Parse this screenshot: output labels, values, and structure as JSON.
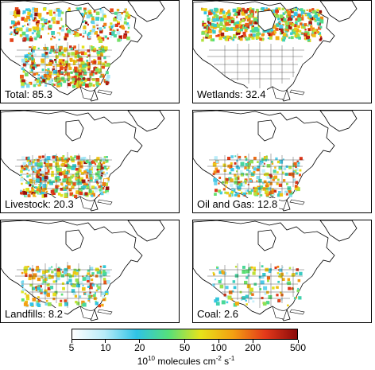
{
  "panels": [
    {
      "id": "total",
      "label": "Total: 85.3",
      "intensity": 1.0
    },
    {
      "id": "wetlands",
      "label": "Wetlands: 32.4",
      "intensity": 0.7
    },
    {
      "id": "livestock",
      "label": "Livestock: 20.3",
      "intensity": 0.55
    },
    {
      "id": "oil_and_gas",
      "label": "Oil and Gas: 12.8",
      "intensity": 0.3
    },
    {
      "id": "landfills",
      "label": "Landfills: 8.2",
      "intensity": 0.25
    },
    {
      "id": "coal",
      "label": "Coal: 2.6",
      "intensity": 0.12
    }
  ],
  "colorbar": {
    "ticks": [
      "5",
      "10",
      "20",
      "50",
      "100",
      "200",
      "500"
    ],
    "tick_values": [
      5,
      10,
      20,
      50,
      100,
      200,
      500
    ],
    "scale": "log",
    "colors": [
      "#ffffff",
      "#b8ecf8",
      "#2fc3e6",
      "#55e07a",
      "#e8e21a",
      "#f3a012",
      "#e4391a",
      "#8b0a0a"
    ],
    "unit_base": "10",
    "unit_exp": "10",
    "unit_text": "molecules cm",
    "unit_exp2": "-2",
    "unit_text2": "s",
    "unit_exp3": "-1"
  }
}
